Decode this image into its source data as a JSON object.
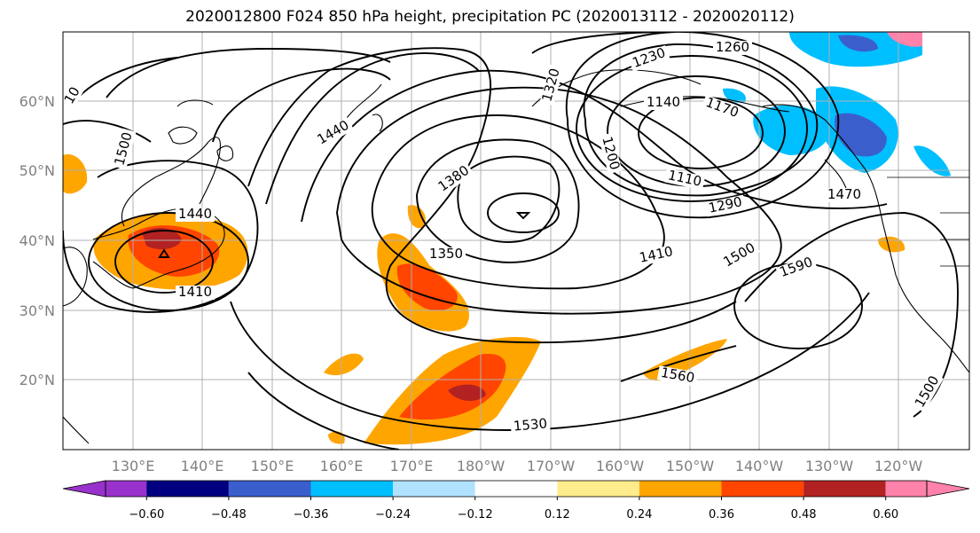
{
  "title": "2020012800 F024 850 hPa height, precipitation PC (2020013112 - 2020020112)",
  "map": {
    "lat_ticks": [
      "60°N",
      "50°N",
      "40°N",
      "30°N",
      "20°N"
    ],
    "lon_ticks": [
      "130°E",
      "140°E",
      "150°E",
      "160°E",
      "170°E",
      "180°W",
      "170°W",
      "160°W",
      "150°W",
      "140°W",
      "130°W",
      "120°W"
    ],
    "contour_labels": [
      "1260",
      "1230",
      "1320",
      "1140",
      "1170",
      "1440",
      "1500",
      "1200",
      "1110",
      "1380",
      "1290",
      "1470",
      "1440",
      "1350",
      "1410",
      "1500",
      "1590",
      "1410",
      "1560",
      "1530",
      "1500",
      "10"
    ]
  },
  "colorbar": {
    "colors": [
      "#9932cc",
      "#000080",
      "#3a5fcd",
      "#00bfff",
      "#b0e2ff",
      "#ffffff",
      "#ffec8b",
      "#ffa500",
      "#ff4500",
      "#b22222",
      "#ff82ab"
    ],
    "labels": [
      "−0.60",
      "−0.48",
      "−0.36",
      "−0.24",
      "−0.12",
      "0.12",
      "0.24",
      "0.36",
      "0.48",
      "0.60"
    ]
  },
  "chart_data": {
    "type": "contour-map",
    "title": "2020012800 F024 850 hPa height, precipitation PC (2020013112 - 2020020112)",
    "contour_values": [
      1110,
      1140,
      1170,
      1200,
      1230,
      1260,
      1290,
      1320,
      1350,
      1380,
      1410,
      1440,
      1470,
      1500,
      1530,
      1560,
      1590
    ],
    "colorbar_bounds": [
      -0.6,
      -0.48,
      -0.36,
      -0.24,
      -0.12,
      0.12,
      0.24,
      0.36,
      0.48,
      0.6
    ],
    "extent": {
      "lon": [
        120,
        250
      ],
      "lat": [
        10,
        70
      ]
    }
  }
}
